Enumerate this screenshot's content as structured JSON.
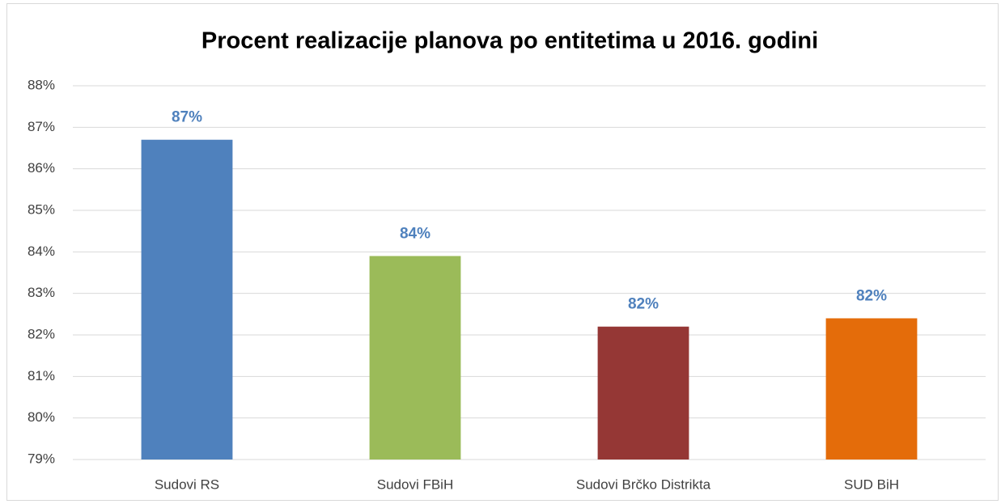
{
  "chart_data": {
    "type": "bar",
    "title": "Procent realizacije planova po entitetima u 2016. godini",
    "categories": [
      "Sudovi RS",
      "Sudovi FBiH",
      "Sudovi Brčko Distrikta",
      "SUD BiH"
    ],
    "values": [
      86.7,
      83.9,
      82.2,
      82.4
    ],
    "value_labels": [
      "87%",
      "84%",
      "82%",
      "82%"
    ],
    "colors": [
      "#4f81bd",
      "#9bbb59",
      "#953735",
      "#e46c0a"
    ],
    "ylim": [
      79,
      88
    ],
    "yticks": [
      {
        "value": 79,
        "label": "79%"
      },
      {
        "value": 80,
        "label": "80%"
      },
      {
        "value": 81,
        "label": "81%"
      },
      {
        "value": 82,
        "label": "82%"
      },
      {
        "value": 83,
        "label": "83%"
      },
      {
        "value": 84,
        "label": "84%"
      },
      {
        "value": 85,
        "label": "85%"
      },
      {
        "value": 86,
        "label": "86%"
      },
      {
        "value": 87,
        "label": "87%"
      },
      {
        "value": 88,
        "label": "88%"
      }
    ],
    "grid": true
  }
}
